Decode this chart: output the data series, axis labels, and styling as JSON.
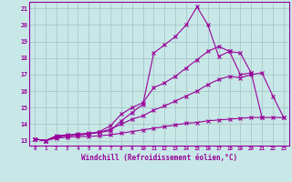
{
  "title": "",
  "xlabel": "Windchill (Refroidissement éolien,°C)",
  "background_color": "#c8e8e8",
  "grid_color": "#a8c8c8",
  "line_color": "#990099",
  "xmin": 0,
  "xmax": 23,
  "ymin": 13,
  "ymax": 21,
  "series1_y": [
    13.1,
    13.0,
    13.3,
    13.35,
    13.4,
    13.45,
    13.5,
    13.6,
    14.2,
    14.7,
    15.2,
    18.3,
    18.8,
    19.3,
    20.0,
    21.1,
    20.0,
    18.1,
    18.4,
    18.3,
    17.1,
    null,
    null,
    null
  ],
  "series2_y": [
    13.1,
    13.0,
    13.25,
    13.3,
    13.35,
    13.4,
    13.55,
    13.9,
    14.6,
    15.0,
    15.3,
    16.2,
    16.5,
    16.9,
    17.4,
    17.9,
    18.4,
    18.7,
    18.4,
    17.0,
    17.1,
    14.4,
    null,
    null
  ],
  "series3_y": [
    13.1,
    13.0,
    13.2,
    13.3,
    13.35,
    13.4,
    13.5,
    13.7,
    14.0,
    14.3,
    14.5,
    14.85,
    15.1,
    15.4,
    15.7,
    16.0,
    16.4,
    16.7,
    16.9,
    16.8,
    17.0,
    17.1,
    15.7,
    14.4
  ],
  "series4_y": [
    13.1,
    13.0,
    13.15,
    13.2,
    13.25,
    13.25,
    13.3,
    13.35,
    13.45,
    13.55,
    13.65,
    13.75,
    13.85,
    13.95,
    14.05,
    14.1,
    14.2,
    14.25,
    14.3,
    14.35,
    14.4,
    14.4,
    14.4,
    14.4
  ],
  "yticks": [
    13,
    14,
    15,
    16,
    17,
    18,
    19,
    20,
    21
  ],
  "xticks": [
    0,
    1,
    2,
    3,
    4,
    5,
    6,
    7,
    8,
    9,
    10,
    11,
    12,
    13,
    14,
    15,
    16,
    17,
    18,
    19,
    20,
    21,
    22,
    23
  ]
}
